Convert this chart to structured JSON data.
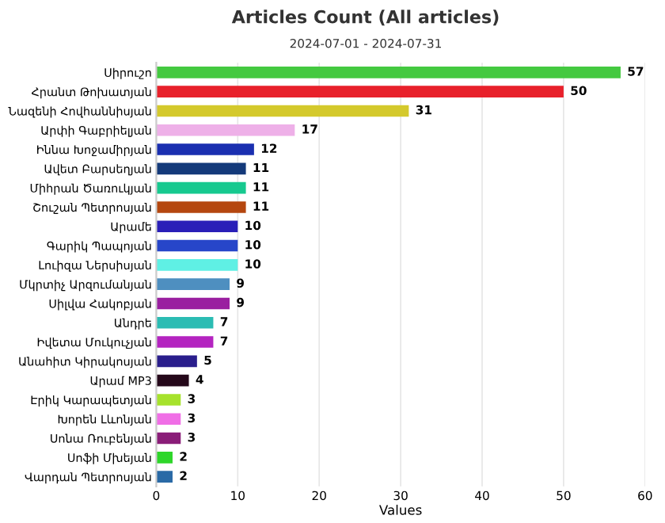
{
  "chart_data": {
    "type": "bar",
    "orientation": "horizontal",
    "title": "Articles Count (All articles)",
    "subtitle": "2024-07-01 - 2024-07-31",
    "xlabel": "Values",
    "categories": [
      "Սիրուշո",
      "Հրանտ Թոխատյան",
      "Նազենի Հովհաննիսյան",
      "Արփի Գաբրիելյան",
      "Իննա Խոջամիրյան",
      "Ավետ Բարսեղյան",
      "Միհրան Ծառուկյան",
      "Շուշան Պետրոսյան",
      "Արամե",
      "Գարիկ Պապոյան",
      "Լուիզա Ներսիսյան",
      "Մկրտիչ Արզումանյան",
      "Սիլվա Հակոբյան",
      "Անդրե",
      "Իվետա Մուկուչյան",
      "Անահիտ Կիրակոսյան",
      "Արամ MP3",
      "Էրիկ Կարապետյան",
      "Խորեն Լևոնյան",
      "Սոնա Ռուբենյան",
      "Սոֆի Մխեյան",
      "Վարդան Պետրոսյան"
    ],
    "values": [
      57,
      50,
      31,
      17,
      12,
      11,
      11,
      11,
      10,
      10,
      10,
      9,
      9,
      7,
      7,
      5,
      4,
      3,
      3,
      3,
      2,
      2
    ],
    "colors": [
      "#44c940",
      "#e8212b",
      "#d4c92c",
      "#eeb0e8",
      "#1a2fb0",
      "#143a7a",
      "#17c98f",
      "#b5470f",
      "#2a1fb8",
      "#2746c9",
      "#5ff0e4",
      "#4e8fc0",
      "#9a1fa0",
      "#2bbcb3",
      "#b424c0",
      "#2a1e8c",
      "#25081a",
      "#a6e22c",
      "#f06ee6",
      "#8a1d78",
      "#2ed62a",
      "#2a6aa6"
    ],
    "xlim": [
      0,
      60
    ],
    "xticks": [
      0,
      10,
      20,
      30,
      40,
      50,
      60
    ],
    "grid": "x",
    "data_labels": true
  }
}
